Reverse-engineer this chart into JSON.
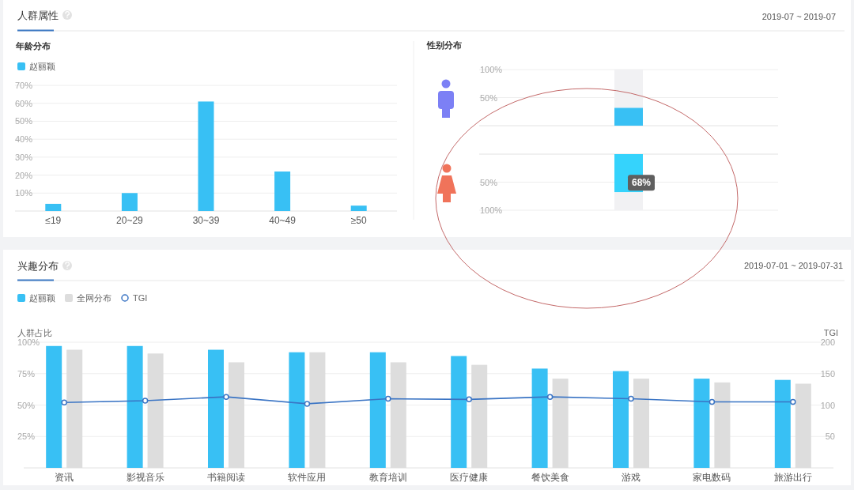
{
  "chart_data": [
    {
      "type": "other",
      "title": "人群属性",
      "annotations": [
        "2019-07 ~ 2019-07"
      ]
    },
    {
      "type": "bar",
      "title": "年龄分布",
      "categories": [
        "≤19",
        "20~29",
        "30~39",
        "40~49",
        "≥50"
      ],
      "series": [
        {
          "name": "赵丽颖",
          "color": "#38c0f4",
          "values": [
            4,
            10,
            61,
            22,
            3
          ]
        }
      ],
      "ylim": [
        0,
        70
      ],
      "yticks": [
        {
          "value": 10,
          "label": "10%"
        },
        {
          "value": 20,
          "label": "20%"
        },
        {
          "value": 30,
          "label": "30%"
        },
        {
          "value": 40,
          "label": "40%"
        },
        {
          "value": 50,
          "label": "50%"
        },
        {
          "value": 60,
          "label": "60%"
        },
        {
          "value": 70,
          "label": "70%"
        }
      ],
      "grid": "y",
      "legend": "top left"
    },
    {
      "type": "bar",
      "title": "性别分布",
      "categories": [
        null
      ],
      "stacked": true,
      "series": [
        {
          "color": "#38c0f4",
          "values": [
            32
          ]
        },
        {
          "color": "#f1f1f3",
          "values": [
            68
          ]
        }
      ],
      "ylim": [
        0,
        100
      ],
      "yticks": [
        {
          "value": 50,
          "label": "50%"
        },
        {
          "value": 100,
          "label": "100%"
        }
      ],
      "grid": "y"
    },
    {
      "type": "bar",
      "categories": [
        null
      ],
      "stacked": true,
      "series": [
        {
          "color": "#35d3fc",
          "values": [
            68
          ],
          "value_labels": [
            "68%"
          ]
        },
        {
          "color": "#f1f1f3",
          "values": [
            32
          ]
        }
      ],
      "ylim": [
        100,
        0
      ],
      "yticks": [
        {
          "value": 50,
          "label": "50%"
        },
        {
          "value": 100,
          "label": "100%"
        }
      ],
      "grid": "y"
    },
    {
      "type": "bar",
      "title": "兴趣分布",
      "annotations": [
        "2019-07-01 ~ 2019-07-31"
      ],
      "categories": [
        "资讯",
        "影视音乐",
        "书籍阅读",
        "软件应用",
        "教育培训",
        "医疗健康",
        "餐饮美食",
        "游戏",
        "家电数码",
        "旅游出行"
      ],
      "ylabel": "人群占比",
      "y2label": "TGI",
      "series": [
        {
          "name": "赵丽颖",
          "color": "#38c0f4",
          "values": [
            97,
            97,
            94,
            92,
            92,
            89,
            79,
            77,
            71,
            70
          ]
        },
        {
          "name": "全网分布",
          "color": "#dddddd",
          "values": [
            94,
            91,
            84,
            92,
            84,
            82,
            71,
            71,
            68,
            67
          ]
        },
        {
          "name": "TGI",
          "type": "line",
          "axis": "y2",
          "marker": "circle",
          "color": "#3a74c4",
          "values": [
            104,
            107,
            113,
            102,
            110,
            109,
            113,
            110,
            105,
            105
          ]
        }
      ],
      "ylim": [
        0,
        100
      ],
      "yticks": [
        {
          "value": 25,
          "label": "25%"
        },
        {
          "value": 50,
          "label": "50%"
        },
        {
          "value": 75,
          "label": "75%"
        },
        {
          "value": 100,
          "label": "100%"
        }
      ],
      "y2lim": [
        0,
        200
      ],
      "y2ticks": [
        50,
        100,
        150,
        200
      ],
      "grid": "y",
      "legend": "top left"
    }
  ]
}
